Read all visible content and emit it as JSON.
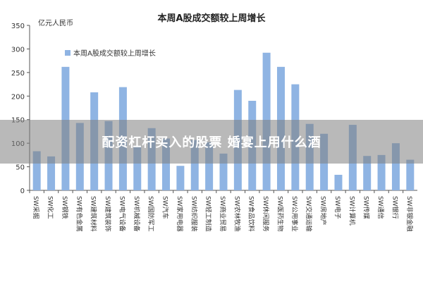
{
  "chart_data": {
    "type": "bar",
    "title": "本周A股成交额较上周增长",
    "unit_label": "亿元人民币",
    "legend": [
      "本周A股成交额较上周增长"
    ],
    "legend_position": "top-left",
    "ylim": [
      0,
      350
    ],
    "yticks": [
      0,
      50,
      100,
      150,
      200,
      250,
      300,
      350
    ],
    "grid": false,
    "color": "#8fb4e3",
    "categories": [
      "SW采掘",
      "SW化工",
      "SW钢铁",
      "SW有色金属",
      "SW建筑材料",
      "SW建筑装饰",
      "SW电气设备",
      "SW机械设备",
      "SW国防军工",
      "SW汽车",
      "SW家用电器",
      "SW纺织服装",
      "SW轻工制造",
      "SW商业贸易",
      "SW农林牧渔",
      "SW食品饮料",
      "SW休闲服务",
      "SW医药生物",
      "SW公用事业",
      "SW交通运输",
      "SW房地产",
      "SW电子",
      "SW计算机",
      "SW传媒",
      "SW通信",
      "SW银行",
      "SW非银金融"
    ],
    "values": [
      83,
      72,
      262,
      143,
      208,
      147,
      219,
      95,
      132,
      110,
      52,
      107,
      102,
      78,
      213,
      190,
      292,
      262,
      225,
      141,
      120,
      33,
      139,
      73,
      75,
      100,
      65
    ]
  },
  "overlay_caption": "配资杠杆买入的股票 婚宴上用什么酒"
}
